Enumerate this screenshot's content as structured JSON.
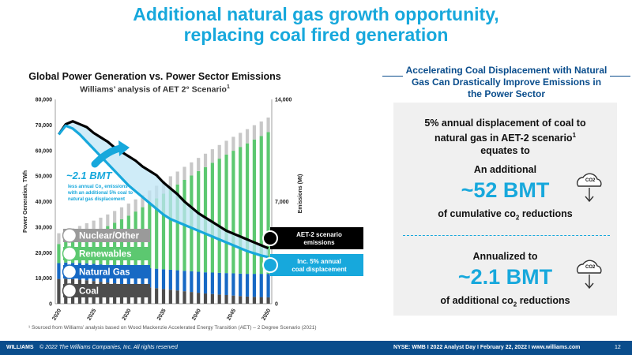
{
  "slide": {
    "title_line1": "Additional natural gas growth opportunity,",
    "title_line2": "replacing coal fired generation",
    "footnote": "¹ Sourced from Williams’ analysis based on Wood Mackenzie Accelerated Energy Transition (AET) – 2 Degree Scenario (2021)",
    "footer_brand": "WILLIAMS",
    "footer_copyright": "© 2022 The Williams Companies, Inc. All rights reserved",
    "footer_info": "NYSE: WMB  I  2022 Analyst Day  I  February 22, 2022  I  www.williams.com",
    "page_number": "12"
  },
  "right_panel": {
    "heading": "Accelerating Coal Displacement with Natural Gas Can Drastically Improve Emissions in the Power Sector",
    "intro_line1": "5% annual displacement of coal to",
    "intro_line2": "natural gas in AET-2 scenario",
    "intro_sup": "1",
    "intro_line3": "equates to",
    "block1_pre": "An additional",
    "block1_value": "~52 BMT",
    "block1_post_a": "of cumulative co",
    "block1_post_sub": "2",
    "block1_post_b": " reductions",
    "block2_pre": "Annualized to",
    "block2_value": "~2.1 BMT",
    "block2_post_a": "of additional co",
    "block2_post_sub": "2",
    "block2_post_b": " reductions",
    "cloud_label": "CO2",
    "accent": "#17a8dc",
    "navy": "#0a4d8c"
  },
  "chart_data": {
    "type": "bar",
    "title": "Global Power Generation vs. Power Sector Emissions",
    "subtitle": "Williams’ analysis of AET 2° Scenario",
    "subtitle_sup": "1",
    "ylabel": "Power Generation, TWh",
    "y2label": "Emissions (Mt)",
    "ylim": [
      0,
      80000
    ],
    "y2lim": [
      0,
      14000
    ],
    "yticks": [
      "0",
      "10,000",
      "20,000",
      "30,000",
      "40,000",
      "50,000",
      "60,000",
      "70,000",
      "80,000"
    ],
    "y2ticks": [
      {
        "value": 0,
        "label": "0"
      },
      {
        "value": 7000,
        "label": "7,000"
      },
      {
        "value": 14000,
        "label": "14,000"
      }
    ],
    "xtick_labels": [
      "2020",
      "2025",
      "2030",
      "2035",
      "2040",
      "2045",
      "2050"
    ],
    "years": [
      2020,
      2021,
      2022,
      2023,
      2024,
      2025,
      2026,
      2027,
      2028,
      2029,
      2030,
      2031,
      2032,
      2033,
      2034,
      2035,
      2036,
      2037,
      2038,
      2039,
      2040,
      2041,
      2042,
      2043,
      2044,
      2045,
      2046,
      2047,
      2048,
      2049,
      2050
    ],
    "series": [
      {
        "name": "Coal",
        "color": "#4d4d4d",
        "values": [
          9700,
          9800,
          9600,
          9400,
          9200,
          8900,
          8600,
          8300,
          8000,
          7700,
          7300,
          7000,
          6700,
          6400,
          6100,
          5800,
          5500,
          5200,
          4900,
          4600,
          4300,
          4000,
          3800,
          3600,
          3400,
          3200,
          3000,
          2800,
          2700,
          2600,
          2500
        ]
      },
      {
        "name": "Natural Gas",
        "color": "#1769c4",
        "values": [
          6200,
          6300,
          6400,
          6500,
          6600,
          6700,
          6800,
          6900,
          7000,
          7100,
          7200,
          7300,
          7400,
          7500,
          7600,
          7700,
          7800,
          7900,
          8000,
          8100,
          8200,
          8300,
          8400,
          8500,
          8600,
          8700,
          8800,
          8900,
          9000,
          9100,
          9200
        ]
      },
      {
        "name": "Renewables",
        "color": "#5cc870",
        "values": [
          7500,
          8300,
          9200,
          10200,
          11300,
          12500,
          13800,
          15200,
          16700,
          18300,
          20000,
          21800,
          23700,
          25600,
          27600,
          29600,
          31600,
          33600,
          35600,
          37500,
          39400,
          41200,
          43000,
          44700,
          46400,
          48000,
          49600,
          51100,
          52600,
          54000,
          55500
        ]
      },
      {
        "name": "Nuclear/Other",
        "color": "#c8c8c8",
        "values": [
          4200,
          4250,
          4300,
          4350,
          4400,
          4450,
          4500,
          4550,
          4600,
          4650,
          4700,
          4750,
          4800,
          4850,
          4900,
          4950,
          5000,
          5050,
          5100,
          5150,
          5200,
          5250,
          5300,
          5350,
          5400,
          5450,
          5500,
          5550,
          5600,
          5650,
          5700
        ]
      }
    ],
    "lines": [
      {
        "name": "AET-2 scenario emissions",
        "color": "#000000",
        "values": [
          11600,
          12300,
          12500,
          12300,
          12100,
          11700,
          11400,
          11100,
          10700,
          10400,
          10100,
          9800,
          9400,
          9100,
          8800,
          8300,
          7900,
          7500,
          7000,
          6600,
          6200,
          5900,
          5600,
          5300,
          5000,
          4800,
          4600,
          4400,
          4200,
          4000,
          3800
        ]
      },
      {
        "name": "Inc. 5% annual coal displacement",
        "color": "#17a8dc",
        "values": [
          11600,
          12200,
          12000,
          11600,
          11100,
          10600,
          10100,
          9600,
          9100,
          8600,
          8100,
          7700,
          7300,
          6900,
          6500,
          6100,
          5800,
          5600,
          5400,
          5200,
          5000,
          4800,
          4600,
          4400,
          4200,
          4000,
          3800,
          3600,
          3450,
          3300,
          3200
        ]
      }
    ],
    "legend": [
      "Nuclear/Other",
      "Renewables",
      "Natural Gas",
      "Coal"
    ],
    "annotation_value": "~2.1 BMT",
    "annotation_text_a": "less annual Co",
    "annotation_text_sub": "2",
    "annotation_text_b": " emissions",
    "annotation_text_line2": "with an additional 5% coal to",
    "annotation_text_line3": "natural gas displacement",
    "end_label1_line1": "AET-2 scenario",
    "end_label1_line2": "emissions",
    "end_label2_line1": "Inc. 5% annual",
    "end_label2_line2": "coal displacement"
  }
}
